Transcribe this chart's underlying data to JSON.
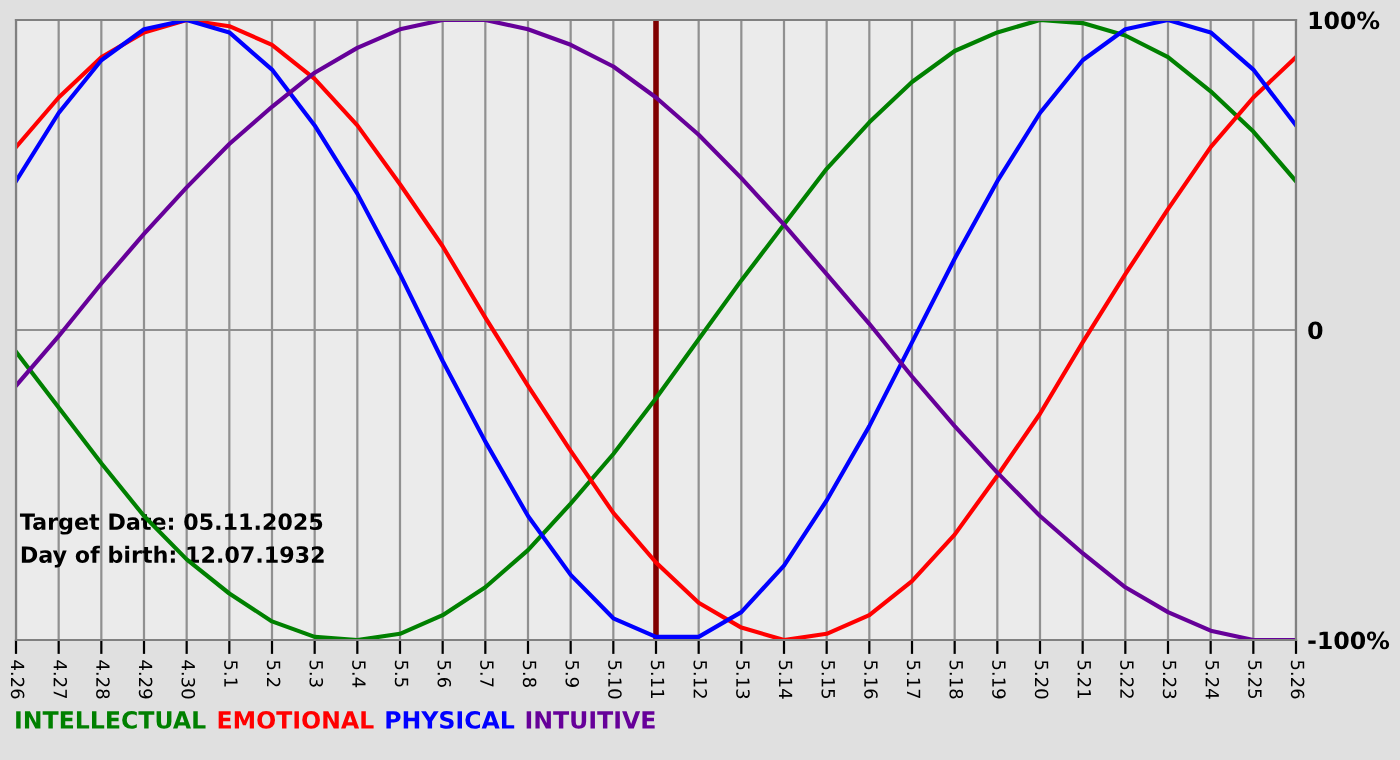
{
  "chart_data": {
    "type": "line",
    "categories": [
      "4.26",
      "4.27",
      "4.28",
      "4.29",
      "4.30",
      "5.1",
      "5.2",
      "5.3",
      "5.4",
      "5.5",
      "5.6",
      "5.7",
      "5.8",
      "5.9",
      "5.10",
      "5.11",
      "5.12",
      "5.13",
      "5.14",
      "5.15",
      "5.16",
      "5.17",
      "5.18",
      "5.19",
      "5.20",
      "5.21",
      "5.22",
      "5.23",
      "5.24",
      "5.25",
      "5.26"
    ],
    "series": [
      {
        "name": "INTELLECTUAL",
        "color": "#008000",
        "values": [
          -7,
          -25,
          -43,
          -60,
          -74,
          -85,
          -94,
          -99,
          -100,
          -98,
          -92,
          -83,
          -71,
          -56,
          -40,
          -22,
          -3,
          16,
          34,
          52,
          67,
          80,
          90,
          96,
          100,
          99,
          95,
          88,
          77,
          64,
          48
        ]
      },
      {
        "name": "EMOTIONAL",
        "color": "#ff0000",
        "values": [
          59,
          75,
          88,
          96,
          100,
          98,
          92,
          81,
          66,
          47,
          27,
          4,
          -18,
          -39,
          -59,
          -75,
          -88,
          -96,
          -100,
          -98,
          -92,
          -81,
          -66,
          -47,
          -27,
          -4,
          18,
          39,
          59,
          75,
          88
        ]
      },
      {
        "name": "PHYSICAL",
        "color": "#0000ff",
        "values": [
          48,
          70,
          87,
          97,
          100,
          96,
          84,
          66,
          44,
          18,
          -10,
          -36,
          -60,
          -79,
          -93,
          -99,
          -99,
          -91,
          -76,
          -55,
          -31,
          -4,
          23,
          48,
          70,
          87,
          97,
          100,
          96,
          84,
          66
        ]
      },
      {
        "name": "INTUITIVE",
        "color": "#660099",
        "values": [
          -18,
          -2,
          15,
          31,
          46,
          60,
          72,
          83,
          91,
          97,
          100,
          100,
          97,
          92,
          85,
          75,
          63,
          49,
          34,
          18,
          2,
          -15,
          -31,
          -46,
          -60,
          -72,
          -83,
          -91,
          -97,
          -100,
          -100
        ]
      }
    ],
    "ylim": [
      -100,
      100
    ],
    "yticks": [
      {
        "value": -100,
        "label": "-100%"
      },
      {
        "value": 0,
        "label": "0"
      },
      {
        "value": 100,
        "label": "100%"
      }
    ],
    "ref_lines": [
      {
        "axis": "x",
        "value": "5.11",
        "color": "#800000"
      }
    ],
    "annotations": [
      "Target Date: 05.11.2025",
      "Day of birth: 12.07.1932"
    ],
    "grid": true,
    "legend": "bottom"
  }
}
